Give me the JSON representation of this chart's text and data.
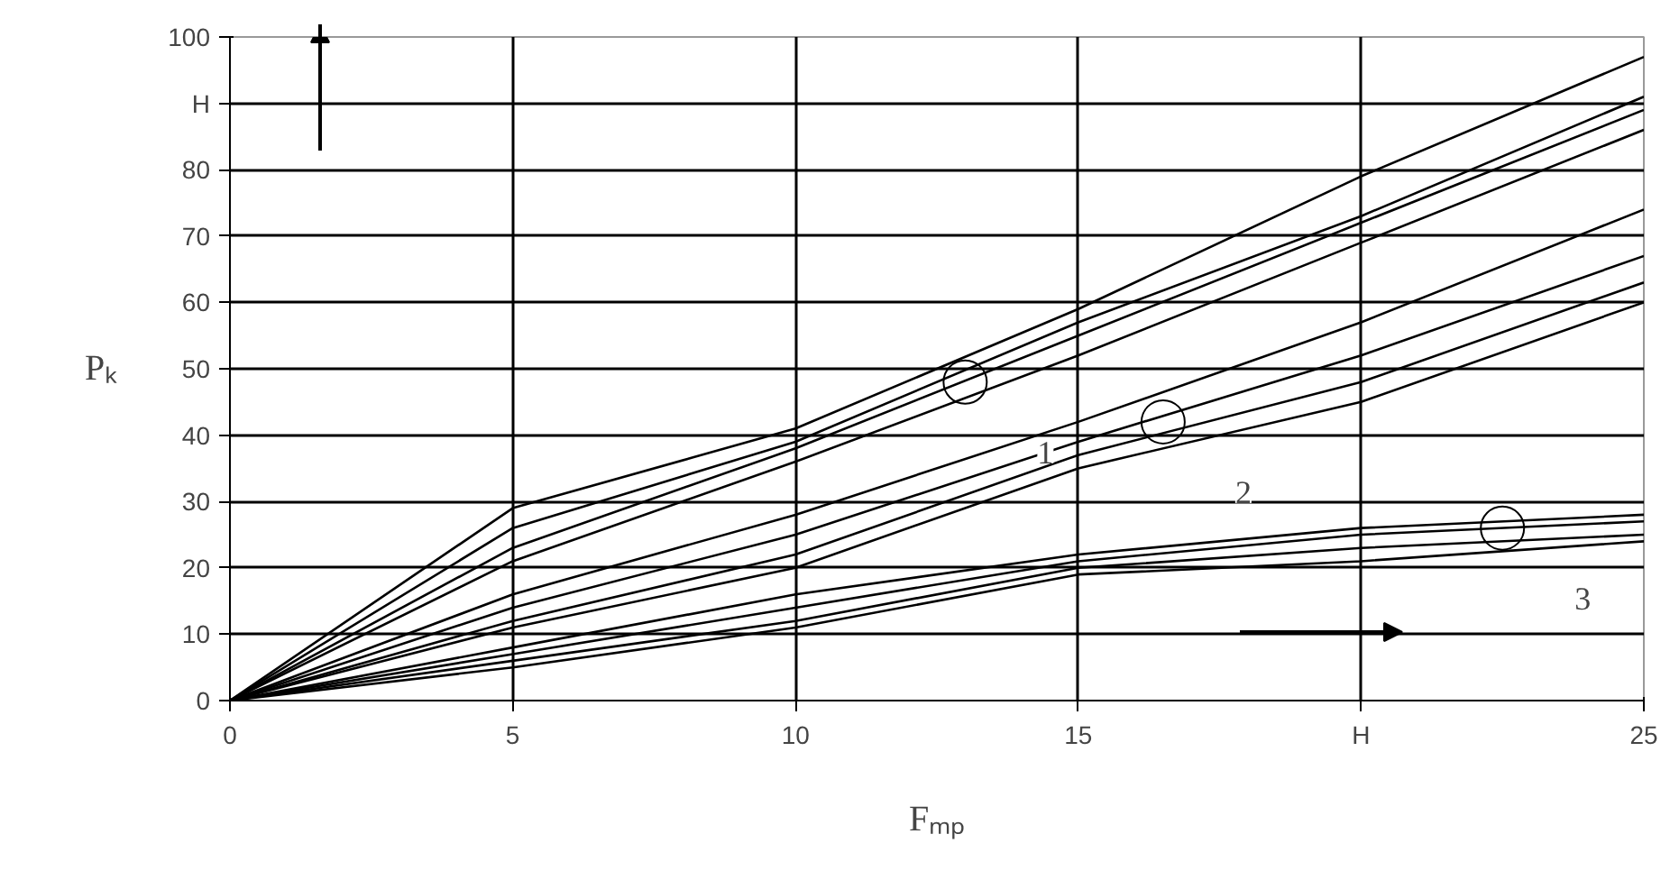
{
  "chart_data": {
    "type": "line",
    "xlabel": "Fₘₚ",
    "ylabel": "Pₖ",
    "x": [
      0,
      5,
      10,
      15,
      20,
      25
    ],
    "series": [
      {
        "color": "#000000",
        "values": [
          0,
          29,
          41,
          59,
          79,
          97
        ]
      },
      {
        "color": "#000000",
        "values": [
          0,
          26,
          39,
          57,
          73,
          91
        ]
      },
      {
        "color": "#000000",
        "values": [
          0,
          23,
          38,
          55,
          72,
          89
        ]
      },
      {
        "color": "#000000",
        "values": [
          0,
          21,
          36,
          52,
          69,
          86
        ]
      },
      {
        "color": "#000000",
        "values": [
          0,
          16,
          28,
          42,
          57,
          74
        ]
      },
      {
        "color": "#000000",
        "values": [
          0,
          14,
          25,
          39,
          52,
          67
        ]
      },
      {
        "color": "#000000",
        "values": [
          0,
          12,
          22,
          37,
          48,
          63
        ]
      },
      {
        "color": "#000000",
        "values": [
          0,
          11,
          20,
          35,
          45,
          60
        ]
      },
      {
        "color": "#000000",
        "values": [
          0,
          8,
          16,
          22,
          26,
          28
        ]
      },
      {
        "color": "#000000",
        "values": [
          0,
          7,
          14,
          21,
          25,
          27
        ]
      },
      {
        "color": "#000000",
        "values": [
          0,
          6,
          12,
          20,
          23,
          25
        ]
      },
      {
        "color": "#000000",
        "values": [
          0,
          5,
          11,
          19,
          21,
          24
        ]
      }
    ],
    "annotations": [
      {
        "text": "1",
        "x": 13,
        "y": 48
      },
      {
        "text": "2",
        "x": 16.5,
        "y": 42
      },
      {
        "text": "3",
        "x": 22.5,
        "y": 26
      }
    ],
    "xlim": [
      0,
      25
    ],
    "ylim": [
      0,
      100
    ],
    "xticks": [
      0,
      5,
      10,
      15,
      {
        "value": 20,
        "label": "H"
      },
      25
    ],
    "yticks": [
      0,
      10,
      20,
      30,
      40,
      50,
      60,
      70,
      80,
      {
        "value": 90,
        "label": "H"
      },
      100
    ],
    "grid": true,
    "marker": "none",
    "line_style": "solid"
  }
}
